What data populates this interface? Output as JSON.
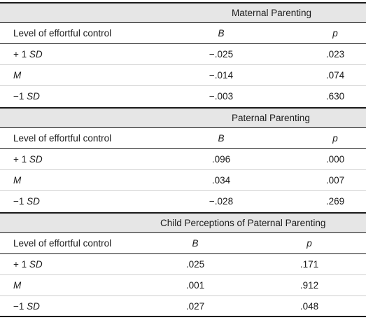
{
  "sections": [
    {
      "title": "Maternal Parenting",
      "columns": {
        "level": "Level of effortful control",
        "b": "B",
        "p": "p"
      },
      "rows": [
        {
          "level_prefix": "+ 1 ",
          "level_italic": "SD",
          "b": "−.025",
          "p": ".023"
        },
        {
          "level_prefix": "",
          "level_italic": "M",
          "b": "−.014",
          "p": ".074"
        },
        {
          "level_prefix": "−1 ",
          "level_italic": "SD",
          "b": "−.003",
          "p": ".630"
        }
      ]
    },
    {
      "title": "Paternal Parenting",
      "columns": {
        "level": "Level of effortful control",
        "b": "B",
        "p": "p"
      },
      "rows": [
        {
          "level_prefix": "+ 1 ",
          "level_italic": "SD",
          "b": ".096",
          "p": ".000"
        },
        {
          "level_prefix": "",
          "level_italic": "M",
          "b": ".034",
          "p": ".007"
        },
        {
          "level_prefix": "−1 ",
          "level_italic": "SD",
          "b": "−.028",
          "p": ".269"
        }
      ]
    },
    {
      "title": "Child Perceptions of Paternal Parenting",
      "columns": {
        "level": "Level of effortful control",
        "b": "B",
        "p": "p"
      },
      "rows": [
        {
          "level_prefix": "+ 1 ",
          "level_italic": "SD",
          "b": ".025",
          "p": ".171"
        },
        {
          "level_prefix": "",
          "level_italic": "M",
          "b": ".001",
          "p": ".912"
        },
        {
          "level_prefix": "−1 ",
          "level_italic": "SD",
          "b": ".027",
          "p": ".048"
        }
      ]
    }
  ]
}
